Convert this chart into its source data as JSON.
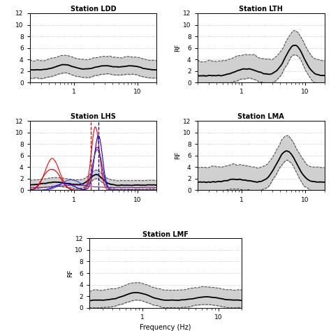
{
  "title_ldd": "Station LDD",
  "title_lth": "Station LTH",
  "title_lhs": "Station LHS",
  "title_lma": "Station LMA",
  "title_lmf": "Station LMF",
  "ylabel": "RF",
  "xlabel": "Frequency (Hz)",
  "background_color": "#ffffff",
  "fill_color": "#c8c8c8",
  "mean_color": "#000000",
  "std_color": "#444444",
  "grid_color": "#aaaaaa",
  "lhs_red1_color": "#ff0000",
  "lhs_red2_color": "#cc0000",
  "lhs_blue1_color": "#0000ff",
  "lhs_blue2_color": "#4444cc",
  "lhs_purple_color": "#882288",
  "lhs_vline_red": "#dd0000",
  "lhs_vline_blue": "#0000cc"
}
